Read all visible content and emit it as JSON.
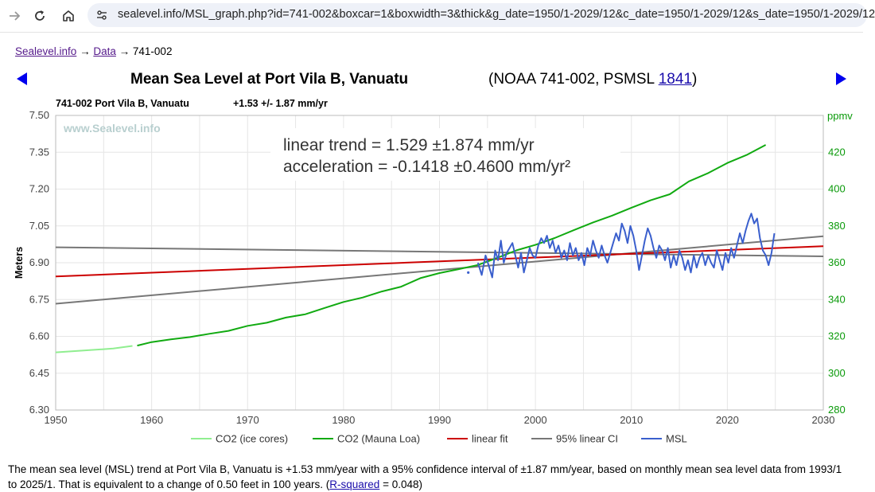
{
  "browser": {
    "url": "sealevel.info/MSL_graph.php?id=741-002&boxcar=1&boxwidth=3&thick&g_date=1950/1-2029/12&c_date=1950/1-2029/12&s_date=1950/1-2029/12"
  },
  "breadcrumb": {
    "home": "Sealevel.info",
    "sep1": "→",
    "data": "Data",
    "sep2": "→",
    "current": "741-002"
  },
  "title": {
    "main": "Mean Sea Level at Port Vila B, Vanuatu",
    "sub_prefix": "(NOAA 741-002, PSMSL ",
    "psmsl_id": "1841",
    "sub_suffix": ")"
  },
  "chart_header": {
    "station": "741-002 Port Vila B, Vanuatu",
    "trend": "+1.53 +/- 1.87 mm/yr",
    "watermark": "www.Sealevel.info",
    "trend_text": "linear trend = 1.529 ±1.874 mm/yr",
    "accel_text": "acceleration = -0.1418 ±0.4600 mm/yr²"
  },
  "chart_data": {
    "type": "line",
    "xlabel": "",
    "ylabel": "Meters",
    "y2label": "ppmv",
    "xlim": [
      1950,
      2030
    ],
    "ylim": [
      6.3,
      7.5
    ],
    "y2lim": [
      280,
      440
    ],
    "xticks": [
      1950,
      1960,
      1970,
      1980,
      1990,
      2000,
      2010,
      2020,
      2030
    ],
    "yticks": [
      "6.30",
      "6.45",
      "6.60",
      "6.75",
      "6.90",
      "7.05",
      "7.20",
      "7.35",
      "7.50"
    ],
    "y2ticks": [
      280,
      300,
      320,
      340,
      360,
      380,
      400,
      420
    ],
    "colors": {
      "co2_ice": "#90ee90",
      "co2_ml": "#11aa11",
      "linear_fit": "#cc0000",
      "ci": "#777777",
      "msl": "#3a5fcd"
    },
    "series": [
      {
        "name": "CO2 (ice cores)",
        "axis": "right",
        "x": [
          1950,
          1952,
          1954,
          1956,
          1958
        ],
        "y": [
          311.3,
          312.0,
          312.7,
          313.4,
          314.8
        ]
      },
      {
        "name": "CO2 (Mauna Loa)",
        "axis": "right",
        "x": [
          1958.5,
          1960,
          1962,
          1964,
          1966,
          1968,
          1970,
          1972,
          1974,
          1976,
          1978,
          1980,
          1982,
          1984,
          1986,
          1988,
          1990,
          1992,
          1994,
          1996,
          1998,
          2000,
          2002,
          2004,
          2006,
          2008,
          2010,
          2012,
          2014,
          2016,
          2018,
          2020,
          2022,
          2024
        ],
        "y": [
          315.0,
          316.9,
          318.4,
          319.6,
          321.4,
          323.0,
          325.7,
          327.4,
          330.2,
          332.0,
          335.4,
          338.7,
          341.1,
          344.4,
          347.0,
          351.6,
          354.4,
          356.5,
          358.8,
          362.6,
          366.7,
          369.7,
          373.4,
          377.7,
          381.9,
          385.6,
          389.9,
          393.9,
          397.2,
          404.2,
          408.7,
          414.2,
          418.5,
          424.0
        ]
      },
      {
        "name": "linear fit",
        "axis": "left",
        "x": [
          1950,
          2030
        ],
        "y": [
          6.844,
          6.967
        ]
      },
      {
        "name": "95% linear CI",
        "axis": "left",
        "x": [
          1950,
          2030
        ],
        "y": [
          6.733,
          7.008
        ],
        "y_upper": [
          6.963,
          6.926
        ]
      },
      {
        "name": "MSL",
        "axis": "left",
        "x": [
          1993.0,
          1994.0,
          1994.4,
          1994.8,
          1995.2,
          1995.5,
          1995.8,
          1996.1,
          1996.4,
          1996.7,
          1997.0,
          1997.3,
          1997.6,
          1997.9,
          1998.2,
          1998.5,
          1998.8,
          1999.1,
          1999.4,
          1999.7,
          2000.0,
          2000.3,
          2000.6,
          2000.9,
          2001.2,
          2001.5,
          2001.8,
          2002.1,
          2002.4,
          2002.7,
          2003.0,
          2003.3,
          2003.6,
          2003.9,
          2004.2,
          2004.5,
          2004.8,
          2005.1,
          2005.4,
          2005.7,
          2006.0,
          2006.3,
          2006.6,
          2006.9,
          2007.2,
          2007.5,
          2007.8,
          2008.1,
          2008.4,
          2008.7,
          2009.0,
          2009.3,
          2009.6,
          2009.9,
          2010.2,
          2010.5,
          2010.8,
          2011.1,
          2011.4,
          2011.7,
          2012.0,
          2012.3,
          2012.6,
          2012.9,
          2013.2,
          2013.5,
          2013.8,
          2014.1,
          2014.4,
          2014.7,
          2015.0,
          2015.3,
          2015.6,
          2015.9,
          2016.2,
          2016.5,
          2016.8,
          2017.1,
          2017.4,
          2017.7,
          2018.0,
          2018.3,
          2018.6,
          2018.9,
          2019.2,
          2019.5,
          2019.8,
          2020.1,
          2020.4,
          2020.7,
          2021.0,
          2021.3,
          2021.6,
          2021.9,
          2022.2,
          2022.5,
          2022.8,
          2023.1,
          2023.4,
          2023.7,
          2024.0,
          2024.3,
          2024.6,
          2024.9
        ],
        "y": [
          6.86,
          6.9,
          6.85,
          6.93,
          6.88,
          6.84,
          6.95,
          6.91,
          6.99,
          6.9,
          6.94,
          6.96,
          6.98,
          6.93,
          6.88,
          6.94,
          6.86,
          6.91,
          6.96,
          6.93,
          6.92,
          6.97,
          7.0,
          6.98,
          7.01,
          6.96,
          6.99,
          6.94,
          6.97,
          6.92,
          6.95,
          6.91,
          6.98,
          6.93,
          6.96,
          6.91,
          6.94,
          6.89,
          6.96,
          6.93,
          6.99,
          6.95,
          6.92,
          6.97,
          6.93,
          6.9,
          6.94,
          6.98,
          7.02,
          6.99,
          7.06,
          7.03,
          6.98,
          7.05,
          7.01,
          6.95,
          6.87,
          6.93,
          6.99,
          7.04,
          7.01,
          6.96,
          6.92,
          6.97,
          6.95,
          6.91,
          6.96,
          6.88,
          6.93,
          6.89,
          6.95,
          6.92,
          6.87,
          6.91,
          6.86,
          6.93,
          6.88,
          6.92,
          6.94,
          6.89,
          6.93,
          6.9,
          6.88,
          6.95,
          6.91,
          6.87,
          6.94,
          6.9,
          6.96,
          6.92,
          6.97,
          7.02,
          6.98,
          7.03,
          7.07,
          7.1,
          7.06,
          7.08,
          7.0,
          6.95,
          6.93,
          6.89,
          6.94,
          7.02
        ]
      }
    ],
    "legend": [
      "CO2 (ice cores)",
      "CO2 (Mauna Loa)",
      "linear fit",
      "95% linear CI",
      "MSL"
    ]
  },
  "description": {
    "text": "The mean sea level (MSL) trend at Port Vila B, Vanuatu is +1.53 mm/year with a 95% confidence interval of ±1.87 mm/year, based on monthly mean sea level data from 1993/1 to 2025/1. That is equivalent to a change of 0.50 feet in 100 years. (",
    "rsq_link": "R-squared",
    "rsq_value": " = 0.048)"
  }
}
